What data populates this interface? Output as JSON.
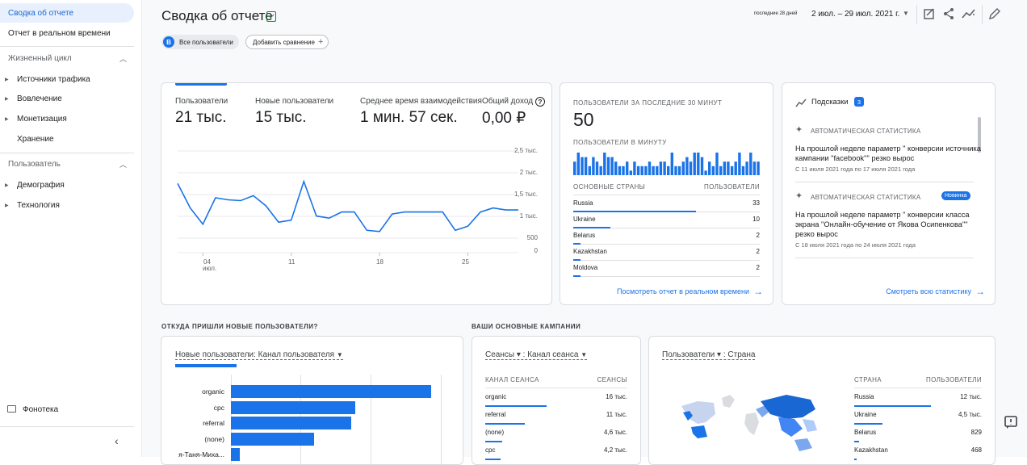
{
  "sidebar": {
    "items_top": [
      "Сводка об отчете",
      "Отчет в реальном времени"
    ],
    "lifecycle": {
      "heading": "Жизненный цикл",
      "items": [
        "Источники трафика",
        "Вовлечение",
        "Монетизация",
        "Хранение"
      ]
    },
    "user": {
      "heading": "Пользователь",
      "items": [
        "Демография",
        "Технология"
      ]
    },
    "library": "Фонотека"
  },
  "header": {
    "title": "Сводка об отчете",
    "chip_all_users": "Все пользователи",
    "chip_letter": "B",
    "add_comparison": "Добавить сравнение",
    "date_hint": "последние 28 дней",
    "date_range": "2 июл. – 29 июл. 2021 г."
  },
  "overview": {
    "kpis": [
      {
        "label": "Пользователи",
        "value": "21 тыс."
      },
      {
        "label": "Новые пользователи",
        "value": "15 тыс."
      },
      {
        "label": "Среднее время взаимодействия",
        "value": "1 мин. 57 сек."
      },
      {
        "label": "Общий доход",
        "value": "0,00 ₽"
      }
    ],
    "help_glyph": "?",
    "month_label": "июл."
  },
  "chart_data": {
    "type": "line",
    "x": [
      "02",
      "03",
      "04",
      "05",
      "06",
      "07",
      "08",
      "09",
      "10",
      "11",
      "12",
      "13",
      "14",
      "15",
      "16",
      "17",
      "18",
      "19",
      "20",
      "21",
      "22",
      "23",
      "24",
      "25",
      "26",
      "27",
      "28",
      "29"
    ],
    "series": [
      {
        "values": [
          1700,
          1100,
          700,
          1350,
          1300,
          1280,
          1400,
          1150,
          750,
          800,
          1750,
          900,
          850,
          1000,
          1000,
          550,
          520,
          950,
          1000,
          1000,
          1000,
          1000,
          550,
          650,
          1000,
          1100,
          1050,
          1050
        ]
      }
    ],
    "y_ticks": [
      "2,5 тыс.",
      "2 тыс.",
      "1,5 тыс.",
      "1 тыс.",
      "500",
      "0"
    ],
    "x_ticks": [
      "04",
      "11",
      "18",
      "25"
    ],
    "ylim": [
      0,
      2500
    ],
    "grid": true
  },
  "realtime": {
    "title": "ПОЛЬЗОВАТЕЛИ ЗА ПОСЛЕДНИЕ 30 МИНУТ",
    "count": "50",
    "per_minute": "ПОЛЬЗОВАТЕЛИ В МИНУТУ",
    "minute_bars": [
      3,
      5,
      4,
      4,
      2,
      4,
      3,
      2,
      5,
      4,
      4,
      3,
      2,
      2,
      3,
      1,
      3,
      2,
      2,
      2,
      3,
      2,
      2,
      3,
      3,
      2,
      5,
      2,
      2,
      3,
      4,
      3,
      5,
      5,
      4,
      1,
      3,
      2,
      5,
      2,
      3,
      3,
      2,
      3,
      5,
      2,
      3,
      5,
      3,
      3
    ],
    "col_country": "ОСНОВНЫЕ СТРАНЫ",
    "col_users": "ПОЛЬЗОВАТЕЛИ",
    "rows": [
      {
        "country": "Russia",
        "users": "33",
        "share": 0.66
      },
      {
        "country": "Ukraine",
        "users": "10",
        "share": 0.2
      },
      {
        "country": "Belarus",
        "users": "2",
        "share": 0.04
      },
      {
        "country": "Kazakhstan",
        "users": "2",
        "share": 0.04
      },
      {
        "country": "Moldova",
        "users": "2",
        "share": 0.04
      }
    ],
    "link": "Посмотреть отчет в реальном времени"
  },
  "hints": {
    "title": "Подсказки",
    "count": "3",
    "items": [
      {
        "caption": "АВТОМАТИЧЕСКАЯ СТАТИСТИКА",
        "text": "На прошлой неделе параметр \" конверсии источника кампании \"facebook\"\" резко вырос",
        "date": "С 11 июля 2021 года по 17 июля 2021 года",
        "badge": ""
      },
      {
        "caption": "АВТОМАТИЧЕСКАЯ СТАТИСТИКА",
        "text": "На прошлой неделе параметр \" конверсии класса экрана \"Онлайн-обучение от Якова Осипенкова\"\" резко вырос",
        "date": "С 18 июля 2021 года по 24 июля 2021 года",
        "badge": "Новинка"
      }
    ],
    "link": "Смотреть всю статистику"
  },
  "new_users_section": {
    "title": "ОТКУДА ПРИШЛИ НОВЫЕ ПОЛЬЗОВАТЕЛИ?",
    "dropdown": "Новые пользователи: Канал пользователя",
    "bars": [
      {
        "label": "organic",
        "value": 0.92
      },
      {
        "label": "cpc",
        "value": 0.57
      },
      {
        "label": "referral",
        "value": 0.55
      },
      {
        "label": "(none)",
        "value": 0.38
      },
      {
        "label": "я-Таня-Миха...",
        "value": 0.04
      }
    ]
  },
  "campaigns_section": {
    "title": "ВАШИ ОСНОВНЫЕ КАМПАНИИ",
    "dropdown": "Сеансы ▾ : Канал сеанса",
    "col_channel": "КАНАЛ СЕАНСА",
    "col_sessions": "СЕАНСЫ",
    "rows": [
      {
        "name": "organic",
        "value": "16 тыс.",
        "share": 0.43
      },
      {
        "name": "referral",
        "value": "11 тыс.",
        "share": 0.28
      },
      {
        "name": "(none)",
        "value": "4,6 тыс.",
        "share": 0.12
      },
      {
        "name": "cpc",
        "value": "4,2 тыс.",
        "share": 0.11
      }
    ]
  },
  "countries_section": {
    "dropdown": "Пользователи ▾ : Страна",
    "col_country": "СТРАНА",
    "col_users": "ПОЛЬЗОВАТЕЛИ",
    "rows": [
      {
        "name": "Russia",
        "value": "12 тыс.",
        "share": 0.6
      },
      {
        "name": "Ukraine",
        "value": "4,5 тыс.",
        "share": 0.22
      },
      {
        "name": "Belarus",
        "value": "829",
        "share": 0.04
      },
      {
        "name": "Kazakhstan",
        "value": "468",
        "share": 0.02
      }
    ]
  },
  "colors": {
    "accent": "#1a73e8",
    "active_bg": "#e8f0fe",
    "ok_green": "#188038"
  }
}
